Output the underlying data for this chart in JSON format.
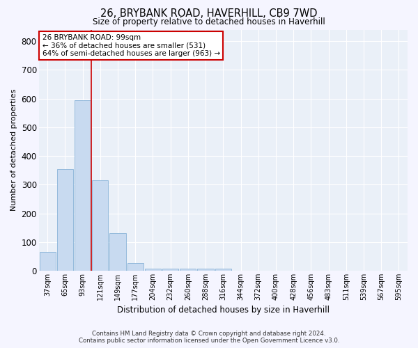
{
  "title": "26, BRYBANK ROAD, HAVERHILL, CB9 7WD",
  "subtitle": "Size of property relative to detached houses in Haverhill",
  "xlabel": "Distribution of detached houses by size in Haverhill",
  "ylabel": "Number of detached properties",
  "footer_line1": "Contains HM Land Registry data © Crown copyright and database right 2024.",
  "footer_line2": "Contains public sector information licensed under the Open Government Licence v3.0.",
  "categories": [
    "37sqm",
    "65sqm",
    "93sqm",
    "121sqm",
    "149sqm",
    "177sqm",
    "204sqm",
    "232sqm",
    "260sqm",
    "288sqm",
    "316sqm",
    "344sqm",
    "372sqm",
    "400sqm",
    "428sqm",
    "456sqm",
    "483sqm",
    "511sqm",
    "539sqm",
    "567sqm",
    "595sqm"
  ],
  "values": [
    65,
    355,
    595,
    315,
    130,
    27,
    8,
    8,
    8,
    8,
    8,
    0,
    0,
    0,
    0,
    0,
    0,
    0,
    0,
    0,
    0
  ],
  "bar_color": "#c8daf0",
  "bar_edge_color": "#8ab4d8",
  "background_color": "#eaf0f8",
  "grid_color": "#ffffff",
  "redline_x": 2.5,
  "redline_color": "#cc0000",
  "annotation_text": "26 BRYBANK ROAD: 99sqm\n← 36% of detached houses are smaller (531)\n64% of semi-detached houses are larger (963) →",
  "annotation_box_color": "#ffffff",
  "annotation_box_edge": "#cc0000",
  "ylim": [
    0,
    840
  ],
  "yticks": [
    0,
    100,
    200,
    300,
    400,
    500,
    600,
    700,
    800
  ]
}
